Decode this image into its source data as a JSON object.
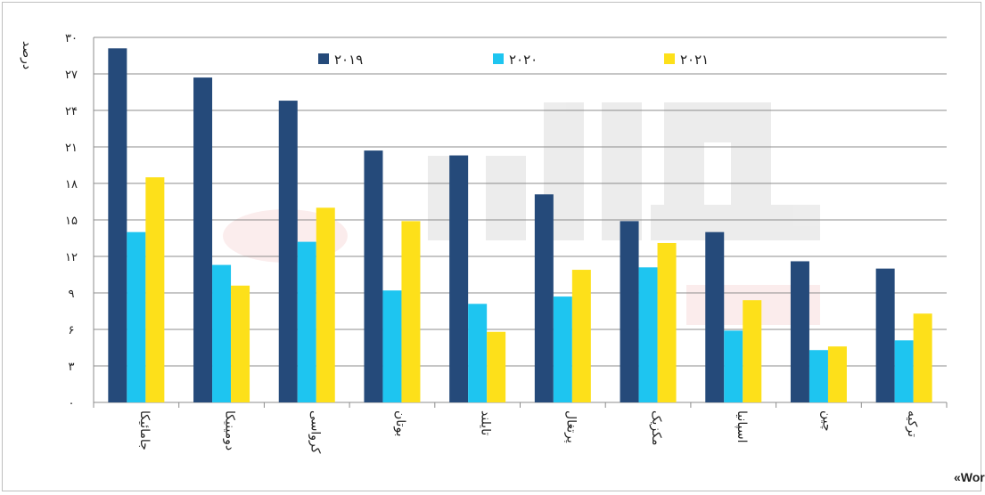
{
  "chart_data": {
    "type": "bar",
    "ylabel": "درصد",
    "ylim": [
      0,
      30
    ],
    "yticks": [
      0,
      3,
      6,
      9,
      12,
      15,
      18,
      21,
      24,
      27,
      30
    ],
    "ytick_labels": [
      "۰",
      "۳",
      "۶",
      "۹",
      "۱۲",
      "۱۵",
      "۱۸",
      "۲۱",
      "۲۴",
      "۲۷",
      "۳۰"
    ],
    "grid": true,
    "legend_position": "top",
    "categories": [
      "جامائیکا",
      "دومینیکا",
      "کرواسی",
      "بوتان",
      "تایلند",
      "پرتغال",
      "مکزیک",
      "اسپانیا",
      "چین",
      "ترکیه"
    ],
    "series": [
      {
        "name": "۲۰۱۹",
        "color": "#254a7a",
        "values": [
          29.1,
          26.7,
          24.8,
          20.7,
          20.3,
          17.1,
          14.9,
          14.0,
          11.6,
          11.0
        ]
      },
      {
        "name": "۲۰۲۰",
        "color": "#1ec5f0",
        "values": [
          14.0,
          11.3,
          13.2,
          9.2,
          8.1,
          8.7,
          11.1,
          5.9,
          4.3,
          5.1
        ]
      },
      {
        "name": "۲۰۲۱",
        "color": "#fde01a",
        "values": [
          18.5,
          9.6,
          16.0,
          14.9,
          5.8,
          10.9,
          13.1,
          8.4,
          4.6,
          7.3
        ]
      }
    ],
    "source": "منبع: «World Travel & Tourism Council»"
  }
}
